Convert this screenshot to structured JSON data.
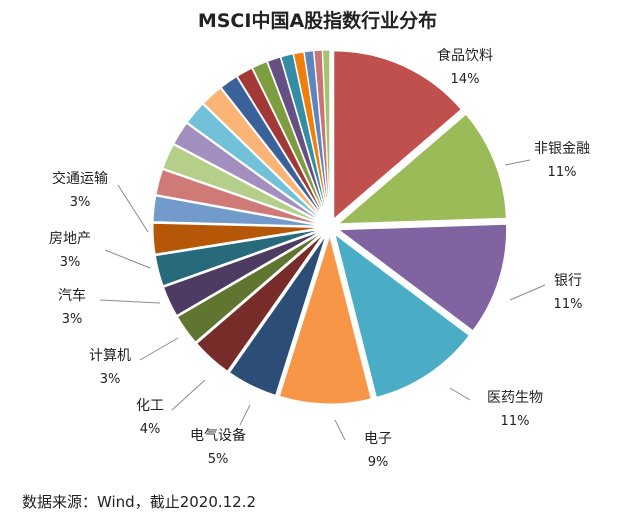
{
  "chart_data": {
    "type": "pie",
    "title": "MSCI中国A股指数行业分布",
    "source": "数据来源：Wind，截止2020.12.2",
    "slices": [
      {
        "label": "食品饮料",
        "value": 14,
        "display": "14%",
        "color": "#C0504D"
      },
      {
        "label": "非银金融",
        "value": 11,
        "display": "11%",
        "color": "#9BBB59"
      },
      {
        "label": "银行",
        "value": 11,
        "display": "11%",
        "color": "#8064A2"
      },
      {
        "label": "医药生物",
        "value": 11,
        "display": "11%",
        "color": "#4BACC6"
      },
      {
        "label": "电子",
        "value": 9,
        "display": "9%",
        "color": "#F79646"
      },
      {
        "label": "电气设备",
        "value": 5,
        "display": "5%",
        "color": "#2C4D75"
      },
      {
        "label": "化工",
        "value": 4,
        "display": "4%",
        "color": "#772C2A"
      },
      {
        "label": "计算机",
        "value": 3,
        "display": "3%",
        "color": "#5F7530"
      },
      {
        "label": "汽车",
        "value": 3,
        "display": "3%",
        "color": "#4D3B62"
      },
      {
        "label": "房地产",
        "value": 3,
        "display": "3%",
        "color": "#276A7C"
      },
      {
        "label": "交通运输",
        "value": 3,
        "display": "3%",
        "color": "#B65708"
      },
      {
        "label": "",
        "value": 2.5,
        "display": "",
        "color": "#729ACA"
      },
      {
        "label": "",
        "value": 2.5,
        "display": "",
        "color": "#D07A78"
      },
      {
        "label": "",
        "value": 2.5,
        "display": "",
        "color": "#B5CE8A"
      },
      {
        "label": "",
        "value": 2.3,
        "display": "",
        "color": "#A28FBF"
      },
      {
        "label": "",
        "value": 2.3,
        "display": "",
        "color": "#71C2D8"
      },
      {
        "label": "",
        "value": 2.2,
        "display": "",
        "color": "#F9B476"
      },
      {
        "label": "",
        "value": 1.8,
        "display": "",
        "color": "#3A6199"
      },
      {
        "label": "",
        "value": 1.6,
        "display": "",
        "color": "#A33936"
      },
      {
        "label": "",
        "value": 1.5,
        "display": "",
        "color": "#7E9D40"
      },
      {
        "label": "",
        "value": 1.3,
        "display": "",
        "color": "#664F83"
      },
      {
        "label": "",
        "value": 1.2,
        "display": "",
        "color": "#348DA5"
      },
      {
        "label": "",
        "value": 1.0,
        "display": "",
        "color": "#F07E0C"
      },
      {
        "label": "",
        "value": 0.9,
        "display": "",
        "color": "#5F85BE"
      },
      {
        "label": "",
        "value": 0.8,
        "display": "",
        "color": "#C87673"
      },
      {
        "label": "",
        "value": 0.7,
        "display": "",
        "color": "#A6C36F"
      }
    ]
  }
}
